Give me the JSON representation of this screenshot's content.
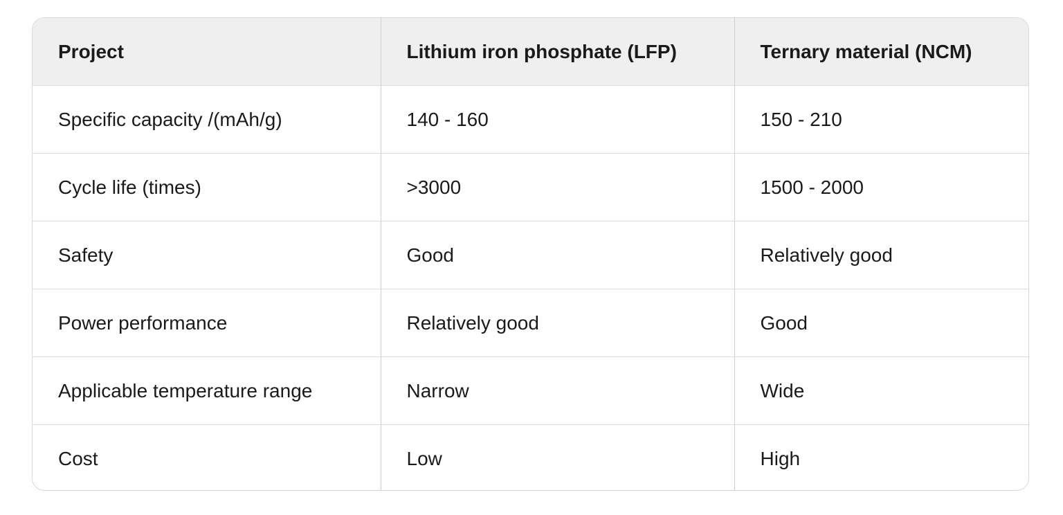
{
  "table": {
    "header": [
      "Project",
      "Lithium iron phosphate (LFP)",
      "Ternary material (NCM)"
    ],
    "rows": [
      [
        "Specific capacity /(mAh/g)",
        "140 - 160",
        "150 - 210"
      ],
      [
        "Cycle life (times)",
        ">3000",
        "1500 - 2000"
      ],
      [
        "Safety",
        "Good",
        "Relatively good"
      ],
      [
        "Power performance",
        "Relatively good",
        "Good"
      ],
      [
        "Applicable temperature range",
        "Narrow",
        "Wide"
      ],
      [
        "Cost",
        "Low",
        "High"
      ]
    ]
  }
}
